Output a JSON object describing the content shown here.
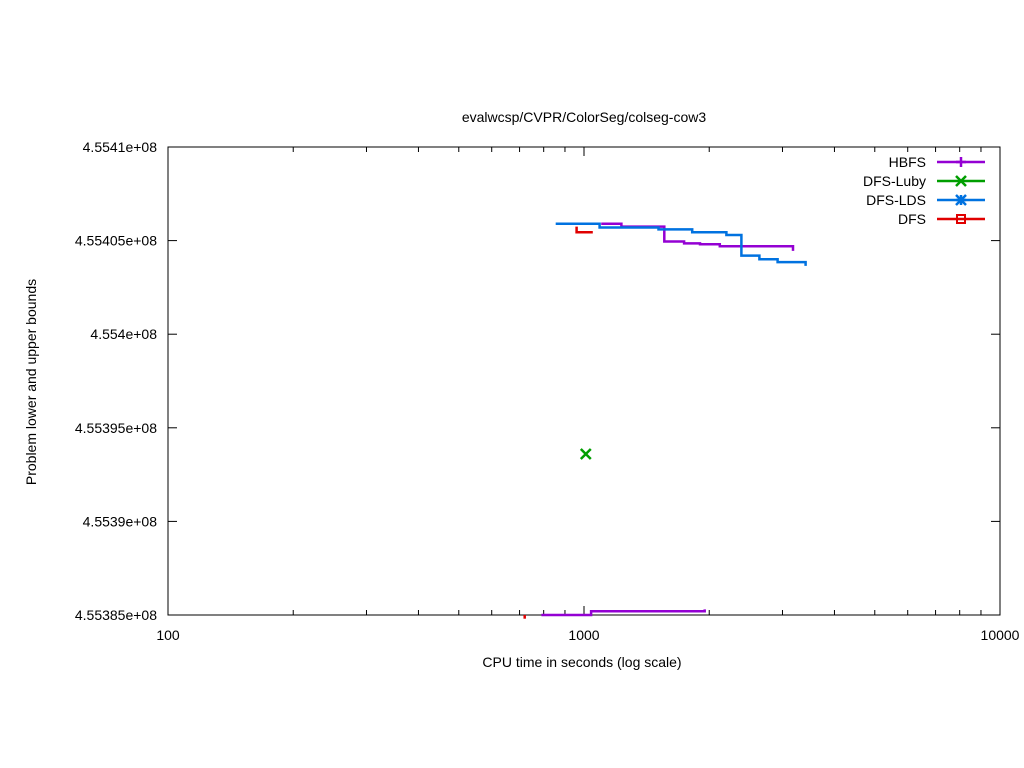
{
  "chart_data": {
    "type": "line",
    "title": "evalwcsp/CVPR/ColorSeg/colseg-cow3",
    "xlabel": "CPU time in seconds (log scale)",
    "ylabel": "Problem lower and upper bounds",
    "x_scale": "log",
    "xlim": [
      100,
      10000
    ],
    "ylim": [
      455385000,
      455410000
    ],
    "grid": false,
    "legend_position": "top-right",
    "x_ticks": [
      {
        "value": 100,
        "label": "100"
      },
      {
        "value": 1000,
        "label": "1000"
      },
      {
        "value": 10000,
        "label": "10000"
      }
    ],
    "y_ticks": [
      {
        "value": 455385000,
        "label": "4.55385e+08"
      },
      {
        "value": 455390000,
        "label": "4.5539e+08"
      },
      {
        "value": 455395000,
        "label": "4.55395e+08"
      },
      {
        "value": 455400000,
        "label": "4.554e+08"
      },
      {
        "value": 455405000,
        "label": "4.55405e+08"
      },
      {
        "value": 455410000,
        "label": "4.5541e+08"
      }
    ],
    "series": [
      {
        "name": "HBFS",
        "color": "#9400d3",
        "marker": "plus",
        "segments": [
          [
            [
              1100,
              455405900
            ],
            [
              1230,
              455405900
            ],
            [
              1230,
              455405750
            ],
            [
              1560,
              455405750
            ],
            [
              1560,
              455404950
            ],
            [
              1740,
              455404950
            ],
            [
              1740,
              455404850
            ],
            [
              1900,
              455404850
            ],
            [
              1900,
              455404800
            ],
            [
              2120,
              455404800
            ],
            [
              2120,
              455404700
            ],
            [
              3180,
              455404700
            ],
            [
              3180,
              455404450
            ]
          ],
          [
            [
              790,
              455385000
            ],
            [
              1040,
              455385000
            ],
            [
              1040,
              455385200
            ],
            [
              1950,
              455385200
            ],
            [
              1950,
              455385300
            ]
          ]
        ]
      },
      {
        "name": "DFS-Luby",
        "color": "#009e00",
        "marker": "x",
        "points": [
          [
            1010,
            455393600
          ]
        ]
      },
      {
        "name": "DFS-LDS",
        "color": "#0072e0",
        "marker": "star",
        "segments": [
          [
            [
              855,
              455405900
            ],
            [
              1090,
              455405900
            ],
            [
              1090,
              455405700
            ],
            [
              1510,
              455405700
            ],
            [
              1510,
              455405600
            ],
            [
              1820,
              455405600
            ],
            [
              1820,
              455405450
            ],
            [
              2200,
              455405450
            ],
            [
              2200,
              455405300
            ],
            [
              2390,
              455405300
            ],
            [
              2390,
              455404200
            ],
            [
              2640,
              455404200
            ],
            [
              2640,
              455404000
            ],
            [
              2920,
              455404000
            ],
            [
              2920,
              455403850
            ],
            [
              3410,
              455403850
            ],
            [
              3410,
              455403650
            ]
          ]
        ]
      },
      {
        "name": "DFS",
        "color": "#e00000",
        "marker": "square",
        "segments": [
          [
            [
              960,
              455405750
            ],
            [
              960,
              455405450
            ],
            [
              1050,
              455405450
            ]
          ],
          [
            [
              720,
              455385000
            ],
            [
              720,
              455384800
            ]
          ]
        ]
      }
    ]
  }
}
